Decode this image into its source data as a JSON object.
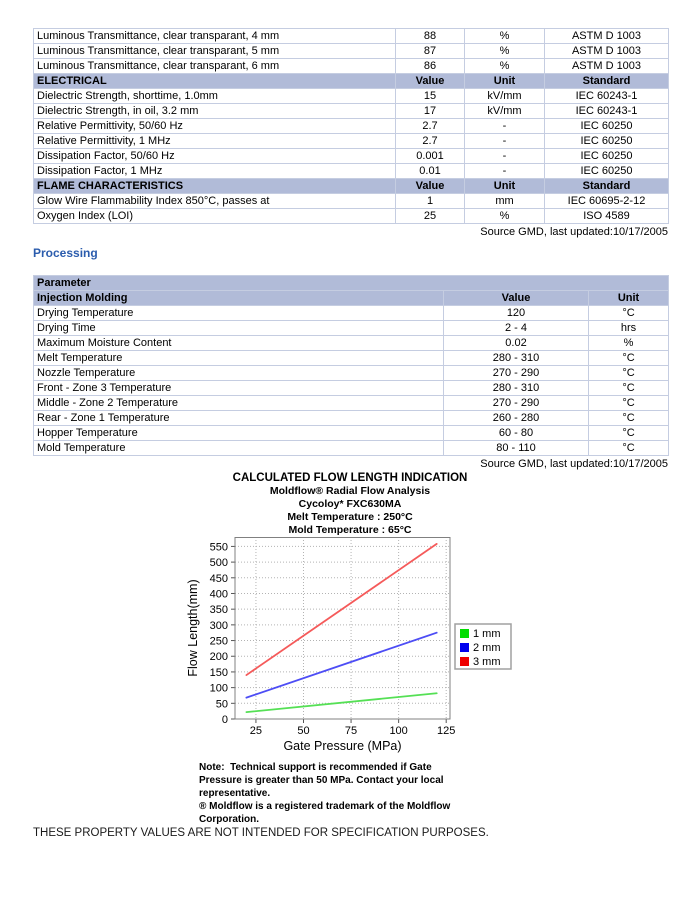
{
  "page": {
    "bottom_statement": "THESE PROPERTY VALUES ARE NOT INTENDED FOR SPECIFICATION PURPOSES."
  },
  "colors": {
    "table_header_bg": "#b1bbd8",
    "table_border": "#c5cde1",
    "section_heading_blue": "#2b5cad"
  },
  "properties_table": {
    "source_note": "Source GMD, last updated:10/17/2005",
    "rows": [
      {
        "kind": "data",
        "cells": [
          "Luminous Transmittance, clear transparant, 4 mm",
          "88",
          "%",
          "ASTM D 1003"
        ]
      },
      {
        "kind": "data",
        "cells": [
          "Luminous Transmittance, clear transparant, 5 mm",
          "87",
          "%",
          "ASTM D 1003"
        ]
      },
      {
        "kind": "data",
        "cells": [
          "Luminous Transmittance, clear transparant, 6 mm",
          "86",
          "%",
          "ASTM D 1003"
        ]
      },
      {
        "kind": "header",
        "cells": [
          "ELECTRICAL",
          "Value",
          "Unit",
          "Standard"
        ]
      },
      {
        "kind": "data",
        "cells": [
          "Dielectric Strength, shorttime, 1.0mm",
          "15",
          "kV/mm",
          "IEC 60243-1"
        ]
      },
      {
        "kind": "data",
        "cells": [
          "Dielectric Strength, in oil, 3.2 mm",
          "17",
          "kV/mm",
          "IEC 60243-1"
        ]
      },
      {
        "kind": "data",
        "cells": [
          "Relative Permittivity, 50/60 Hz",
          "2.7",
          "-",
          "IEC 60250"
        ]
      },
      {
        "kind": "data",
        "cells": [
          "Relative Permittivity, 1 MHz",
          "2.7",
          "-",
          "IEC 60250"
        ]
      },
      {
        "kind": "data",
        "cells": [
          "Dissipation Factor, 50/60 Hz",
          "0.001",
          "-",
          "IEC 60250"
        ]
      },
      {
        "kind": "data",
        "cells": [
          "Dissipation Factor, 1 MHz",
          "0.01",
          "-",
          "IEC 60250"
        ]
      },
      {
        "kind": "header",
        "cells": [
          "FLAME CHARACTERISTICS",
          "Value",
          "Unit",
          "Standard"
        ]
      },
      {
        "kind": "data",
        "cells": [
          "Glow Wire Flammability Index 850°C, passes at",
          "1",
          "mm",
          "IEC 60695-2-12"
        ]
      },
      {
        "kind": "data",
        "cells": [
          "Oxygen Index (LOI)",
          "25",
          "%",
          "ISO 4589"
        ]
      }
    ]
  },
  "processing": {
    "heading": "Processing",
    "source_note": "Source GMD, last updated:10/17/2005",
    "table_rows": [
      {
        "kind": "header",
        "cells": [
          "Parameter"
        ]
      },
      {
        "kind": "header",
        "cells": [
          "Injection Molding",
          "Value",
          "Unit"
        ]
      },
      {
        "kind": "data",
        "cells": [
          "Drying Temperature",
          "120",
          "°C"
        ]
      },
      {
        "kind": "data",
        "cells": [
          "Drying Time",
          "2 - 4",
          "hrs"
        ]
      },
      {
        "kind": "data",
        "cells": [
          "Maximum Moisture Content",
          "0.02",
          "%"
        ]
      },
      {
        "kind": "data",
        "cells": [
          "Melt Temperature",
          "280 - 310",
          "°C"
        ]
      },
      {
        "kind": "data",
        "cells": [
          "Nozzle Temperature",
          "270 - 290",
          "°C"
        ]
      },
      {
        "kind": "data",
        "cells": [
          "Front - Zone 3 Temperature",
          "280 - 310",
          "°C"
        ]
      },
      {
        "kind": "data",
        "cells": [
          "Middle - Zone 2 Temperature",
          "270 - 290",
          "°C"
        ]
      },
      {
        "kind": "data",
        "cells": [
          "Rear - Zone 1 Temperature",
          "260 - 280",
          "°C"
        ]
      },
      {
        "kind": "data",
        "cells": [
          "Hopper Temperature",
          "60 - 80",
          "°C"
        ]
      },
      {
        "kind": "data",
        "cells": [
          "Mold Temperature",
          "80 - 110",
          "°C"
        ]
      }
    ]
  },
  "chart_data": {
    "type": "line",
    "title": "CALCULATED FLOW LENGTH INDICATION",
    "subtitles": [
      "Moldflow® Radial Flow Analysis",
      "Cycoloy* FXC630MA",
      "Melt Temperature : 250°C",
      "Mold Temperature : 65°C"
    ],
    "xlabel": "Gate Pressure (MPa)",
    "ylabel": "Flow Length(mm)",
    "xlim": [
      14,
      127
    ],
    "ylim": [
      0,
      580
    ],
    "xticks": [
      25,
      50,
      75,
      100,
      125
    ],
    "yticks": [
      0,
      50,
      100,
      150,
      200,
      250,
      300,
      350,
      400,
      450,
      500,
      550
    ],
    "grid": true,
    "legend_position": "right",
    "series": [
      {
        "name": "1 mm",
        "color": "#00dd00",
        "line_color": "#55e055",
        "x": [
          20,
          120
        ],
        "y": [
          22,
          82
        ]
      },
      {
        "name": "2 mm",
        "color": "#0000ee",
        "line_color": "#4d4df5",
        "x": [
          20,
          120
        ],
        "y": [
          68,
          275
        ]
      },
      {
        "name": "3 mm",
        "color": "#ee0000",
        "line_color": "#f55a5a",
        "x": [
          20,
          120
        ],
        "y": [
          140,
          558
        ]
      }
    ],
    "notes": [
      "Note:  Technical support is recommended if Gate",
      "Pressure is greater than 50 MPa. Contact your local",
      "representative.",
      "® Moldflow is a registered trademark of the Moldflow",
      "Corporation."
    ]
  }
}
